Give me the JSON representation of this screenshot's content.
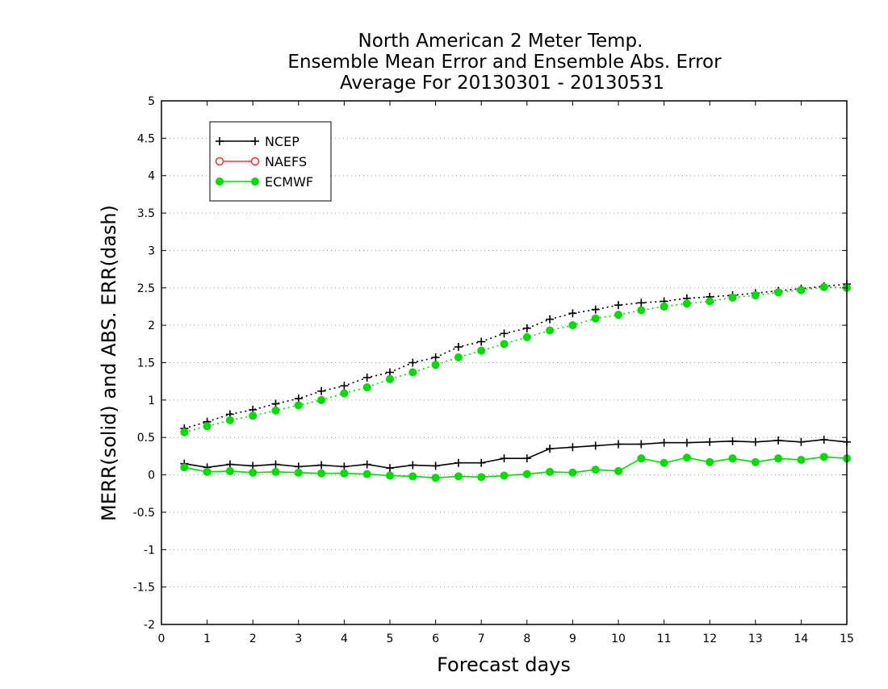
{
  "chart_data": {
    "type": "line",
    "title_lines": [
      "North American 2 Meter Temp.",
      "Ensemble Mean Error and Ensemble Abs. Error",
      "Average For 20130301 - 20130531"
    ],
    "xlabel": "Forecast days",
    "ylabel": "MERR(solid) and ABS. ERR(dash)",
    "xlim": [
      0,
      15
    ],
    "ylim": [
      -2,
      5
    ],
    "x_ticks": [
      "0",
      "1",
      "2",
      "3",
      "4",
      "5",
      "6",
      "7",
      "8",
      "9",
      "10",
      "11",
      "12",
      "13",
      "14",
      "15"
    ],
    "y_ticks": [
      "-2",
      "-1.5",
      "-1",
      "-0.5",
      "0",
      "0.5",
      "1",
      "1.5",
      "2",
      "2.5",
      "3",
      "3.5",
      "4",
      "4.5",
      "5"
    ],
    "grid": "horizontal dotted",
    "legend_position": "top-left",
    "legend": [
      {
        "name": "NCEP",
        "color": "#000000",
        "marker": "plus"
      },
      {
        "name": "NAEFS",
        "color": "#ff3030",
        "marker": "open-circle"
      },
      {
        "name": "ECMWF",
        "color": "#00dd00",
        "marker": "filled-circle"
      }
    ],
    "x": [
      0.5,
      1,
      1.5,
      2,
      2.5,
      3,
      3.5,
      4,
      4.5,
      5,
      5.5,
      6,
      6.5,
      7,
      7.5,
      8,
      8.5,
      9,
      9.5,
      10,
      10.5,
      11,
      11.5,
      12,
      12.5,
      13,
      13.5,
      14,
      14.5,
      15
    ],
    "series": [
      {
        "name": "NCEP",
        "kind": "ABS. ERR",
        "style": "dash",
        "color": "#000000",
        "marker": "plus",
        "values": [
          0.62,
          0.71,
          0.81,
          0.87,
          0.95,
          1.02,
          1.12,
          1.19,
          1.3,
          1.37,
          1.5,
          1.57,
          1.71,
          1.78,
          1.89,
          1.96,
          2.08,
          2.16,
          2.21,
          2.27,
          2.3,
          2.32,
          2.36,
          2.38,
          2.4,
          2.43,
          2.46,
          2.49,
          2.52,
          2.55
        ]
      },
      {
        "name": "ECMWF",
        "kind": "ABS. ERR",
        "style": "dash",
        "color": "#00dd00",
        "marker": "filled-circle",
        "values": [
          0.57,
          0.65,
          0.73,
          0.79,
          0.86,
          0.93,
          1.0,
          1.09,
          1.17,
          1.28,
          1.37,
          1.47,
          1.57,
          1.66,
          1.75,
          1.84,
          1.93,
          2.0,
          2.09,
          2.14,
          2.2,
          2.25,
          2.29,
          2.32,
          2.37,
          2.4,
          2.44,
          2.47,
          2.51,
          2.5
        ]
      },
      {
        "name": "NCEP",
        "kind": "MERR",
        "style": "solid",
        "color": "#000000",
        "marker": "plus",
        "values": [
          0.15,
          0.1,
          0.14,
          0.12,
          0.14,
          0.11,
          0.13,
          0.11,
          0.14,
          0.09,
          0.13,
          0.12,
          0.16,
          0.16,
          0.22,
          0.22,
          0.35,
          0.37,
          0.39,
          0.41,
          0.41,
          0.43,
          0.43,
          0.44,
          0.45,
          0.44,
          0.46,
          0.44,
          0.47,
          0.44
        ]
      },
      {
        "name": "ECMWF",
        "kind": "MERR",
        "style": "solid",
        "color": "#00dd00",
        "marker": "filled-circle",
        "values": [
          0.1,
          0.04,
          0.05,
          0.03,
          0.04,
          0.03,
          0.02,
          0.02,
          0.01,
          -0.01,
          -0.02,
          -0.04,
          -0.02,
          -0.03,
          -0.01,
          0.01,
          0.04,
          0.03,
          0.07,
          0.05,
          0.22,
          0.16,
          0.23,
          0.17,
          0.22,
          0.17,
          0.22,
          0.2,
          0.24,
          0.22
        ]
      }
    ]
  }
}
